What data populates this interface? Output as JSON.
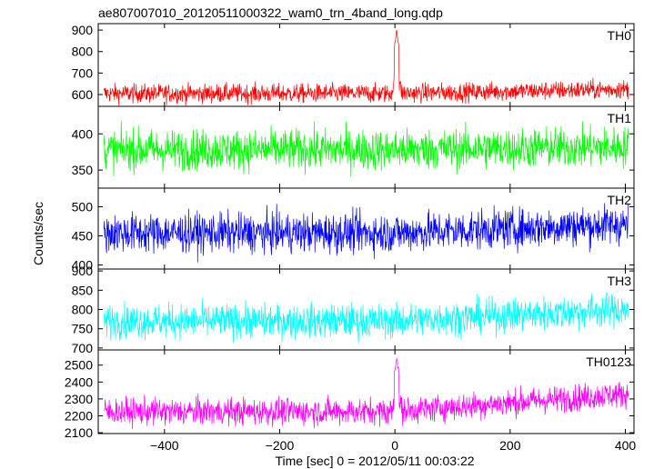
{
  "chart_data": {
    "type": "line",
    "title": "ae807007010_20120511000322_wam0_trn_4band_long.qdp",
    "xlabel": "Time [sec] 0 = 2012/05/11 00:03:22",
    "ylabel": "Counts/sec",
    "xlim": [
      -515,
      415
    ],
    "x_range": [
      -505,
      405
    ],
    "x_ticks": [
      -400,
      -200,
      0,
      200,
      400
    ],
    "x_tick_labels": [
      "−400",
      "−200",
      "0",
      "200",
      "400"
    ],
    "grid": false,
    "panels": [
      {
        "name": "TH0",
        "color": "#ff0000",
        "ylim": [
          545,
          930
        ],
        "yticks": [
          600,
          700,
          800,
          900
        ],
        "baseline_start": 605,
        "baseline_end": 625,
        "noise": 22,
        "spike": 900,
        "bump": []
      },
      {
        "name": "TH1",
        "color": "#00ff00",
        "ylim": [
          325,
          438
        ],
        "yticks": [
          350,
          400
        ],
        "baseline_start": 378,
        "baseline_end": 382,
        "noise": 14,
        "spike": null,
        "bump": []
      },
      {
        "name": "TH2",
        "color": "#0000ff",
        "ylim": [
          393,
          532
        ],
        "yticks": [
          400,
          450,
          500
        ],
        "baseline_start": 455,
        "baseline_end": 470,
        "noise": 17,
        "spike": null,
        "bump": []
      },
      {
        "name": "TH3",
        "color": "#00ffff",
        "ylim": [
          695,
          905
        ],
        "yticks": [
          700,
          750,
          800,
          850,
          900
        ],
        "baseline_start": 770,
        "baseline_end": 800,
        "noise": 22,
        "spike": null,
        "bump": []
      },
      {
        "name": "TH0123",
        "color": "#ff00ff",
        "ylim": [
          2095,
          2590
        ],
        "yticks": [
          2100,
          2200,
          2300,
          2400,
          2500
        ],
        "baseline_start": 2225,
        "baseline_end": 2330,
        "noise": 40,
        "spike": 2540,
        "bump": []
      }
    ]
  }
}
